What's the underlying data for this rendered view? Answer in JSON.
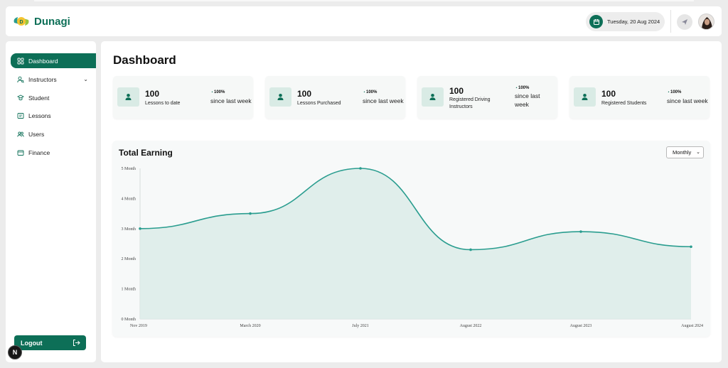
{
  "app": {
    "name": "Dunagi"
  },
  "header": {
    "date": "Tuesday, 20 Aug 2024"
  },
  "sidebar": {
    "items": [
      {
        "label": "Dashboard",
        "icon": "grid-icon",
        "active": true
      },
      {
        "label": "Instructors",
        "icon": "user-search-icon",
        "has_submenu": true
      },
      {
        "label": "Student",
        "icon": "student-icon"
      },
      {
        "label": "Lessons",
        "icon": "lessons-icon"
      },
      {
        "label": "Users",
        "icon": "users-icon"
      },
      {
        "label": "Finance",
        "icon": "wallet-icon"
      }
    ],
    "logout_label": "Logout"
  },
  "overlay_badge": "N",
  "main": {
    "title": "Dashboard",
    "stats": [
      {
        "value": "100",
        "label": "Lessons to date",
        "change": "100%",
        "since": "since last week"
      },
      {
        "value": "100",
        "label": "Lessons Purchased",
        "change": "100%",
        "since": "since last week"
      },
      {
        "value": "100",
        "label": "Registered Driving Instructors",
        "change": "100%",
        "since": "since last week"
      },
      {
        "value": "100",
        "label": "Registered Students",
        "change": "100%",
        "since": "since last week"
      }
    ],
    "earnings": {
      "title": "Total Earning",
      "period": "Monthly"
    }
  },
  "colors": {
    "brand": "#0d6f57",
    "line": "#2a9d8f",
    "area": "#dcece9"
  },
  "chart_data": {
    "type": "area",
    "title": "Total Earning",
    "x": [
      "Nov 2019",
      "March 2020",
      "July 2021",
      "August 2022",
      "August 2023",
      "August 2024"
    ],
    "y_ticks": [
      "0 Month",
      "1 Month",
      "2 Month",
      "3 Month",
      "4 Month",
      "5 Month"
    ],
    "ylim": [
      0,
      5
    ],
    "series": [
      {
        "values": [
          3.0,
          3.5,
          5.0,
          2.3,
          2.9,
          2.4
        ]
      }
    ],
    "smooth": true,
    "grid": false
  }
}
